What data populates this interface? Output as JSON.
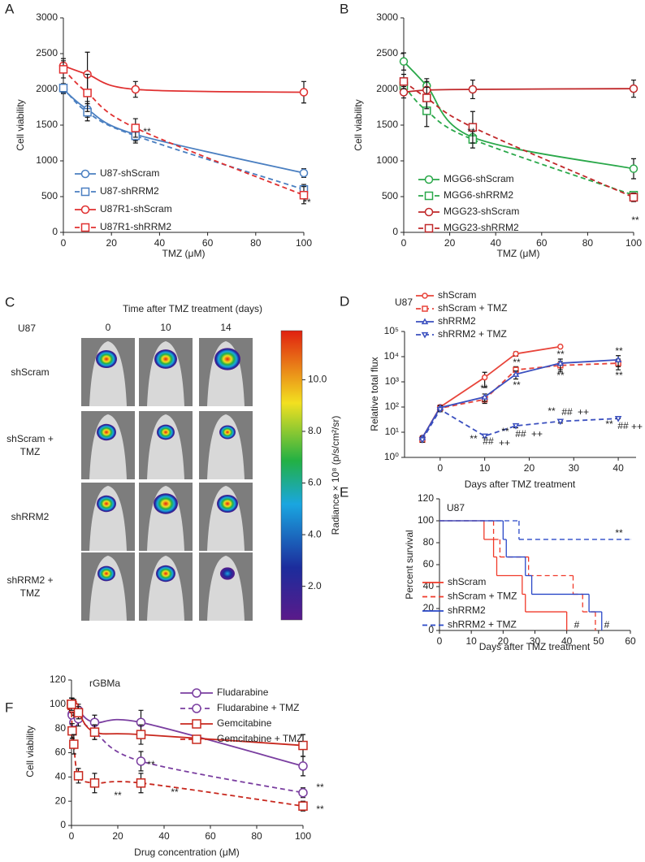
{
  "chart_data": [
    {
      "label": "A",
      "type": "line",
      "line_shape": "smooth",
      "x": [
        0,
        10,
        30,
        100
      ],
      "xlim": [
        0,
        100
      ],
      "xticks": [
        0,
        20,
        40,
        60,
        80,
        100
      ],
      "ylim": [
        0,
        3000
      ],
      "yticks": [
        0,
        500,
        1000,
        1500,
        2000,
        2500,
        3000
      ],
      "xlabel": "TMZ (μM)",
      "ylabel": "Cell viability",
      "legend": "lower left",
      "series": [
        {
          "name": "U87-shScram",
          "color": "#4a7fc1",
          "dash": false,
          "marker": "circle",
          "values": [
            2000,
            1720,
            1370,
            830
          ],
          "errors": [
            60,
            110,
            90,
            60
          ]
        },
        {
          "name": "U87-shRRM2",
          "color": "#4a7fc1",
          "dash": true,
          "marker": "square",
          "values": [
            2020,
            1680,
            1350,
            600
          ],
          "errors": [
            60,
            120,
            100,
            70
          ]
        },
        {
          "name": "U87R1-shScram",
          "color": "#e03030",
          "dash": false,
          "marker": "circle",
          "values": [
            2330,
            2210,
            2000,
            1960
          ],
          "errors": [
            100,
            310,
            110,
            150
          ]
        },
        {
          "name": "U87R1-shRRM2",
          "color": "#e03030",
          "dash": true,
          "marker": "square",
          "values": [
            2280,
            1950,
            1460,
            520
          ],
          "errors": [
            120,
            260,
            130,
            120
          ]
        }
      ],
      "annotations": [
        "**",
        "**"
      ]
    },
    {
      "label": "B",
      "type": "line",
      "line_shape": "smooth",
      "x": [
        0,
        10,
        30,
        100
      ],
      "xlim": [
        0,
        100
      ],
      "xticks": [
        0,
        20,
        40,
        60,
        80,
        100
      ],
      "ylim": [
        0,
        3000
      ],
      "yticks": [
        0,
        500,
        1000,
        1500,
        2000,
        2500,
        3000
      ],
      "xlabel": "TMZ (μM)",
      "ylabel": "Cell viability",
      "legend": "lower left",
      "series": [
        {
          "name": "MGG6-shScram",
          "color": "#2aa84a",
          "dash": false,
          "marker": "circle",
          "values": [
            2390,
            2050,
            1330,
            890
          ],
          "errors": [
            120,
            100,
            80,
            140
          ]
        },
        {
          "name": "MGG6-shRRM2",
          "color": "#2aa84a",
          "dash": true,
          "marker": "square",
          "values": [
            2050,
            1700,
            1300,
            520
          ],
          "errors": [
            100,
            220,
            120,
            50
          ]
        },
        {
          "name": "MGG23-shScram",
          "color": "#c0282a",
          "dash": false,
          "marker": "circle",
          "values": [
            1960,
            1990,
            2000,
            2010
          ],
          "errors": [
            80,
            120,
            130,
            120
          ]
        },
        {
          "name": "MGG23-shRRM2",
          "color": "#c0282a",
          "dash": true,
          "marker": "square",
          "values": [
            2110,
            1880,
            1470,
            490
          ],
          "errors": [
            100,
            150,
            220,
            60
          ]
        }
      ],
      "annotations": [
        "**",
        "**"
      ]
    },
    {
      "label": "D",
      "type": "line",
      "line_shape": "linear",
      "title": "U87",
      "xlim": [
        -8,
        44
      ],
      "xticks": [
        0,
        10,
        20,
        30,
        40
      ],
      "ylim": [
        1,
        100000
      ],
      "log_y": true,
      "yticks": [
        {
          "value": 1,
          "label": "10⁰"
        },
        {
          "value": 10,
          "label": "10¹"
        },
        {
          "value": 100,
          "label": "10²"
        },
        {
          "value": 1000,
          "label": "10³"
        },
        {
          "value": 10000,
          "label": "10⁴"
        },
        {
          "value": 100000,
          "label": "10⁵"
        }
      ],
      "xlabel": "Days after TMZ treatment",
      "ylabel": "Relative total flux",
      "legend": "upper left",
      "series": [
        {
          "name": "shScram",
          "color": "#e8443a",
          "dash": false,
          "marker": "circle",
          "x": [
            -4,
            0,
            10,
            17,
            27
          ],
          "values": [
            6,
            100,
            1500,
            13000,
            25000
          ],
          "errors": [
            1,
            20,
            900,
            2500,
            0
          ]
        },
        {
          "name": "shScram + TMZ",
          "color": "#e8443a",
          "dash": true,
          "marker": "square",
          "x": [
            -4,
            0,
            10,
            17,
            27,
            40
          ],
          "values": [
            5,
            90,
            200,
            3000,
            4500,
            5500
          ],
          "errors": [
            1,
            15,
            60,
            1000,
            2000,
            2500
          ]
        },
        {
          "name": "shRRM2",
          "color": "#3a4fbf",
          "dash": false,
          "marker": "triangle-up",
          "x": [
            -4,
            0,
            10,
            17,
            27,
            40
          ],
          "values": [
            6,
            95,
            250,
            2000,
            5500,
            7500
          ],
          "errors": [
            1,
            20,
            80,
            700,
            2500,
            3500
          ]
        },
        {
          "name": "shRRM2 + TMZ",
          "color": "#3a4fbf",
          "dash": true,
          "marker": "triangle-down",
          "x": [
            -4,
            0,
            10,
            17,
            27,
            40
          ],
          "values": [
            5,
            80,
            7,
            18,
            27,
            35
          ],
          "errors": [
            1,
            15,
            1,
            3,
            4,
            0
          ]
        }
      ],
      "annotations": [
        "**",
        "**",
        "**",
        "**",
        "**",
        "**",
        "**",
        "**",
        "##",
        "++",
        "**",
        "##",
        "++",
        "**",
        "##",
        "++",
        "**",
        "##",
        "++"
      ]
    },
    {
      "label": "E",
      "type": "line",
      "line_shape": "step",
      "title": "U87",
      "xlim": [
        0,
        60
      ],
      "xticks": [
        0,
        10,
        20,
        30,
        40,
        50,
        60
      ],
      "ylim": [
        0,
        120
      ],
      "yticks": [
        0,
        20,
        40,
        60,
        80,
        100,
        120
      ],
      "xlabel": "Days after TMZ treatment",
      "ylabel": "Percent survival",
      "legend": "lower left",
      "series": [
        {
          "name": "shScram",
          "color": "#f03a2a",
          "dash": false,
          "marker": "none",
          "x": [
            0,
            14,
            17,
            18,
            26,
            27,
            40
          ],
          "values": [
            100,
            83,
            67,
            50,
            33,
            17,
            0
          ]
        },
        {
          "name": "shScram + TMZ",
          "color": "#f03a2a",
          "dash": true,
          "marker": "none",
          "x": [
            0,
            17,
            19,
            28,
            42,
            45,
            49
          ],
          "values": [
            100,
            83,
            67,
            50,
            33,
            17,
            0
          ]
        },
        {
          "name": "shRRM2",
          "color": "#2a48c8",
          "dash": false,
          "marker": "none",
          "x": [
            0,
            20,
            21,
            27,
            29,
            47,
            51
          ],
          "values": [
            100,
            83,
            67,
            50,
            33,
            17,
            0
          ]
        },
        {
          "name": "shRRM2 + TMZ",
          "color": "#2a48c8",
          "dash": true,
          "marker": "none",
          "x": [
            0,
            25,
            60
          ],
          "values": [
            100,
            83,
            83
          ]
        }
      ],
      "annotations": [
        "**",
        "#",
        "#"
      ]
    },
    {
      "label": "F",
      "type": "line",
      "line_shape": "smooth",
      "title": "rGBMa",
      "x": [
        0,
        0.3,
        1,
        3,
        10,
        30,
        100
      ],
      "xlim": [
        0,
        100
      ],
      "xticks": [
        0,
        20,
        40,
        60,
        80,
        100
      ],
      "ylim": [
        0,
        120
      ],
      "yticks": [
        0,
        20,
        40,
        60,
        80,
        100,
        120
      ],
      "xlabel": "Drug concentration (μM)",
      "ylabel": "Cell viability",
      "legend": "upper right",
      "series": [
        {
          "name": "Fludarabine",
          "color": "#7a3ea0",
          "dash": false,
          "marker": "circle",
          "values": [
            100,
            92,
            98,
            95,
            85,
            85,
            49
          ],
          "errors": [
            5,
            8,
            6,
            5,
            6,
            10,
            8
          ]
        },
        {
          "name": "Fludarabine + TMZ",
          "color": "#7a3ea0",
          "dash": true,
          "marker": "circle",
          "values": [
            100,
            91,
            85,
            88,
            77,
            53,
            27
          ],
          "errors": [
            5,
            8,
            6,
            6,
            6,
            8,
            4
          ]
        },
        {
          "name": "Gemcitabine",
          "color": "#c8281e",
          "dash": false,
          "marker": "square",
          "values": [
            100,
            99,
            97,
            93,
            77,
            75,
            66
          ],
          "errors": [
            5,
            6,
            6,
            5,
            6,
            8,
            9
          ]
        },
        {
          "name": "Gemcitabine + TMZ",
          "color": "#c8281e",
          "dash": true,
          "marker": "square",
          "values": [
            100,
            78,
            67,
            41,
            35,
            35,
            16
          ],
          "errors": [
            5,
            6,
            8,
            6,
            8,
            8,
            4
          ]
        }
      ],
      "annotations": [
        "**",
        "**",
        "**",
        "**",
        "**"
      ]
    }
  ],
  "panel_c": {
    "label": "C",
    "title": "Time after TMZ treatment (days)",
    "cell_line": "U87",
    "columns": [
      "0",
      "10",
      "14"
    ],
    "rows": [
      "shScram",
      "shScram + TMZ",
      "shRRM2",
      "shRRM2 + TMZ"
    ],
    "colorbar": {
      "label": "Radiance × 10⁸ (p/s/cm²/sr)",
      "lim": [
        0.7,
        11.9
      ],
      "ticks": [
        {
          "value": 2,
          "label": "2.0"
        },
        {
          "value": 4,
          "label": "4.0"
        },
        {
          "value": 6,
          "label": "6.0"
        },
        {
          "value": 8,
          "label": "8.0"
        },
        {
          "value": 10,
          "label": "10.0"
        }
      ]
    }
  }
}
